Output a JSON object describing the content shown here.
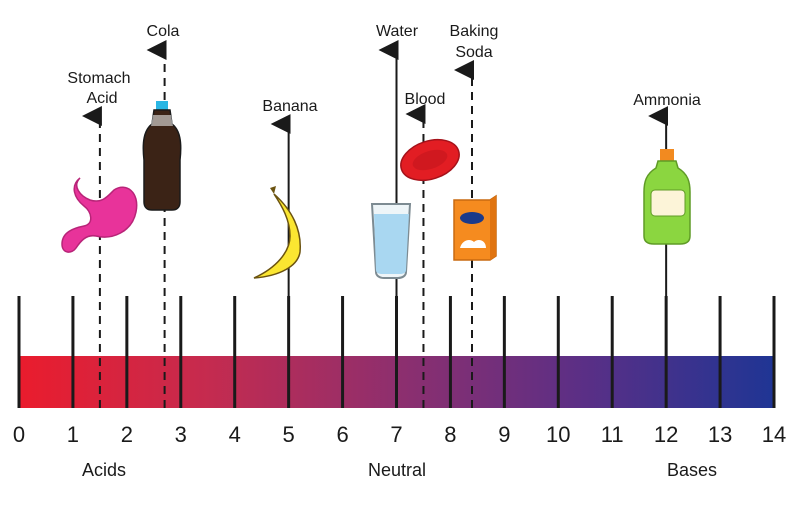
{
  "scale": {
    "ticks": [
      "0",
      "1",
      "2",
      "3",
      "4",
      "5",
      "6",
      "7",
      "8",
      "9",
      "10",
      "11",
      "12",
      "13",
      "14"
    ],
    "gradient_colors": [
      "#ea1c2d",
      "#c52b4f",
      "#8e2f6e",
      "#5a2f86",
      "#1f3594"
    ]
  },
  "categories": {
    "acids": "Acids",
    "neutral": "Neutral",
    "bases": "Bases"
  },
  "substances": [
    {
      "id": "stomach-acid",
      "lines": [
        "Stomach",
        "Acid"
      ],
      "ph": 1.5,
      "style": "dashed",
      "icon": "stomach-icon"
    },
    {
      "id": "cola",
      "lines": [
        "Cola"
      ],
      "ph": 2.7,
      "style": "dashed",
      "icon": "cola-bottle-icon"
    },
    {
      "id": "banana",
      "lines": [
        "Banana"
      ],
      "ph": 5,
      "style": "solid",
      "icon": "banana-icon"
    },
    {
      "id": "water",
      "lines": [
        "Water"
      ],
      "ph": 7,
      "style": "solid",
      "icon": "water-glass-icon"
    },
    {
      "id": "blood",
      "lines": [
        "Blood"
      ],
      "ph": 7.5,
      "style": "dashed",
      "icon": "blood-cell-icon"
    },
    {
      "id": "baking-soda",
      "lines": [
        "Baking",
        "Soda"
      ],
      "ph": 8.4,
      "style": "dashed",
      "icon": "baking-soda-box-icon"
    },
    {
      "id": "ammonia",
      "lines": [
        "Ammonia"
      ],
      "ph": 12,
      "style": "solid",
      "icon": "ammonia-bottle-icon"
    }
  ]
}
